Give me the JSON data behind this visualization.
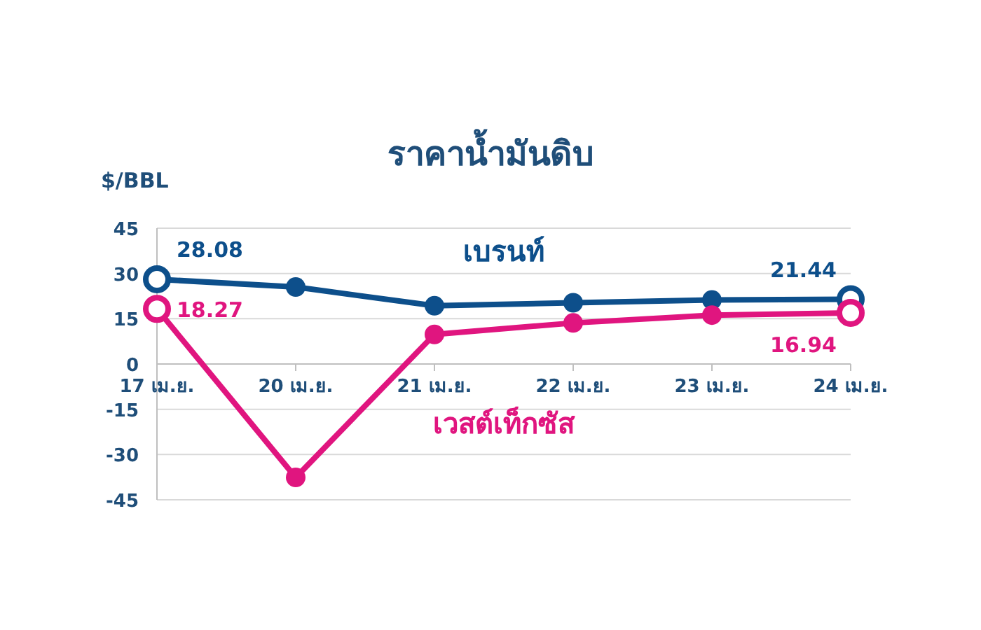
{
  "chart_data": {
    "type": "line",
    "title": "ราคาน้ำมันดิบ",
    "ylabel": "$/BBL",
    "categories": [
      "17 เม.ย.",
      "20 เม.ย.",
      "21 เม.ย.",
      "22 เม.ย.",
      "23 เม.ย.",
      "24 เม.ย."
    ],
    "series": [
      {
        "name": "เบรนท์",
        "color": "#0d4f8b",
        "values": [
          28.08,
          25.5,
          19.3,
          20.3,
          21.2,
          21.44
        ],
        "value_labels": [
          "28.08",
          null,
          null,
          null,
          null,
          "21.44"
        ]
      },
      {
        "name": "เวสต์เท็กซัส",
        "color": "#e0157f",
        "values": [
          18.27,
          -37.6,
          9.8,
          13.6,
          16.2,
          16.94
        ],
        "value_labels": [
          "18.27",
          null,
          null,
          null,
          null,
          "16.94"
        ]
      }
    ],
    "ylim": [
      -45,
      45
    ],
    "yticks": [
      -45,
      -30,
      -15,
      0,
      15,
      30,
      45
    ],
    "grid": "y",
    "marker": "circle",
    "line_style": "solid"
  }
}
